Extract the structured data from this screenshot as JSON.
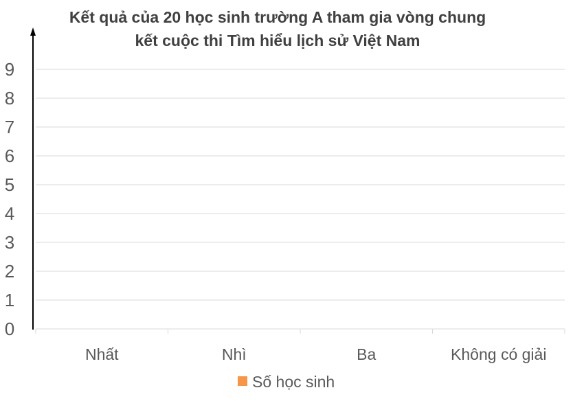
{
  "chart_data": {
    "type": "bar",
    "title_lines": [
      "Kết quả của 20 học sinh trường A tham gia vòng chung",
      "kết cuộc thi Tìm hiểu lịch sử Việt Nam"
    ],
    "categories": [
      "Nhất",
      "Nhì",
      "Ba",
      "Không có giải"
    ],
    "series": [
      {
        "name": "Số học sinh",
        "values": [
          null,
          null,
          null,
          null
        ],
        "color": "#F79646"
      }
    ],
    "yticks": [
      "0",
      "1",
      "2",
      "3",
      "4",
      "5",
      "6",
      "7",
      "8",
      "9"
    ],
    "ylim": [
      0,
      9
    ],
    "grid": true,
    "legend": "bottom-center"
  }
}
